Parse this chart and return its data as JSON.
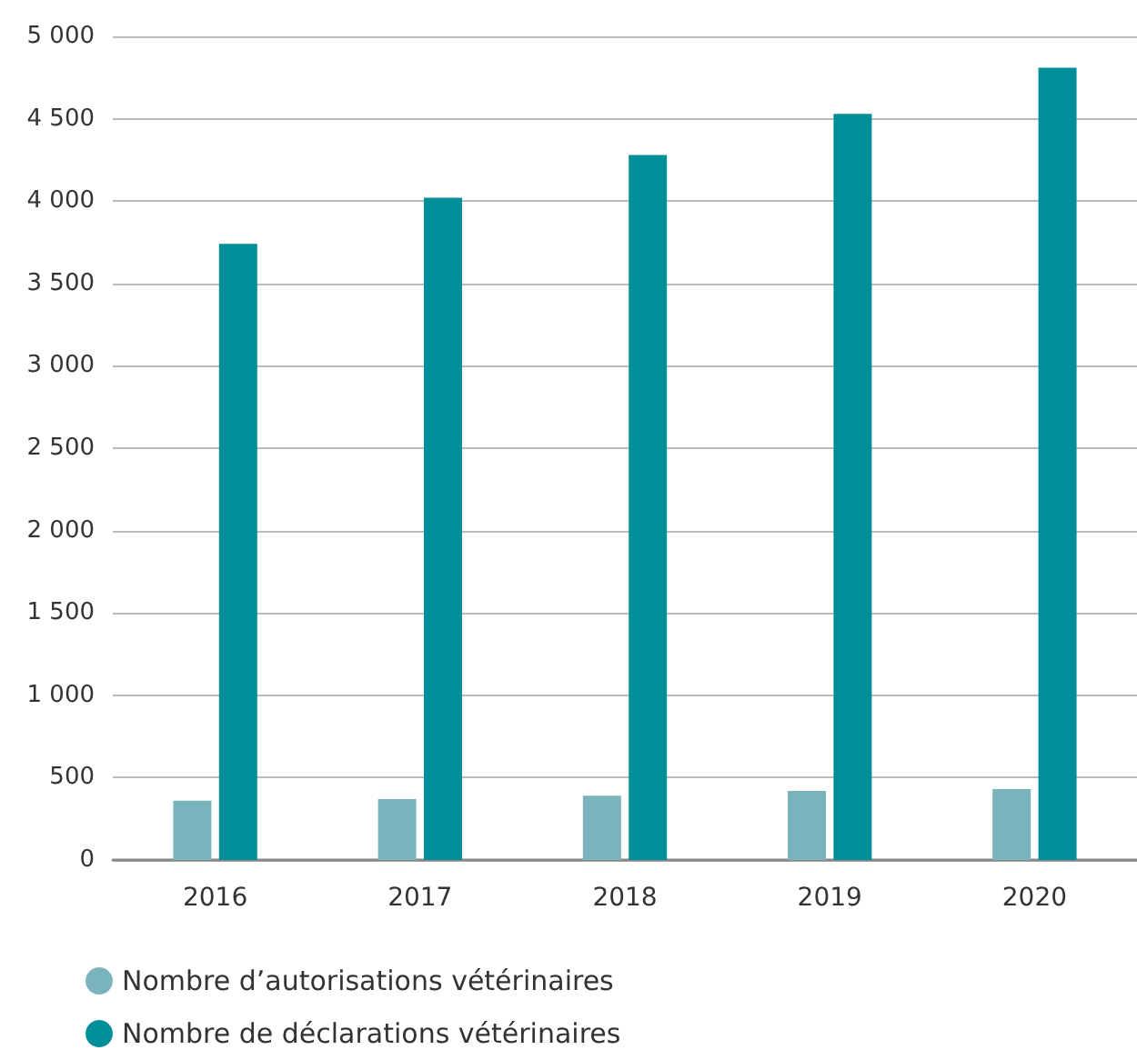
{
  "chart_data": {
    "type": "bar",
    "categories": [
      "2016",
      "2017",
      "2018",
      "2019",
      "2020"
    ],
    "series": [
      {
        "name": "Nombre d’autorisations vétérinaires",
        "color": "#7ab3bc",
        "values": [
          360,
          370,
          390,
          420,
          430
        ]
      },
      {
        "name": "Nombre de déclarations vétérinaires",
        "color": "#008f99",
        "values": [
          3740,
          4020,
          4280,
          4530,
          4810
        ]
      }
    ],
    "ylim": [
      0,
      5000
    ],
    "yticks": [
      0,
      500,
      {
        "value": 1000,
        "label": "1 000"
      },
      {
        "value": 1500,
        "label": "1 500"
      },
      {
        "value": 2000,
        "label": "2 000"
      },
      {
        "value": 2500,
        "label": "2 500"
      },
      {
        "value": 3000,
        "label": "3 000"
      },
      {
        "value": 3500,
        "label": "3 500"
      },
      {
        "value": 4000,
        "label": "4 000"
      },
      {
        "value": 4500,
        "label": "4 500"
      },
      {
        "value": 5000,
        "label": "5 000"
      }
    ],
    "grid": "y",
    "legend": "bottom left"
  }
}
